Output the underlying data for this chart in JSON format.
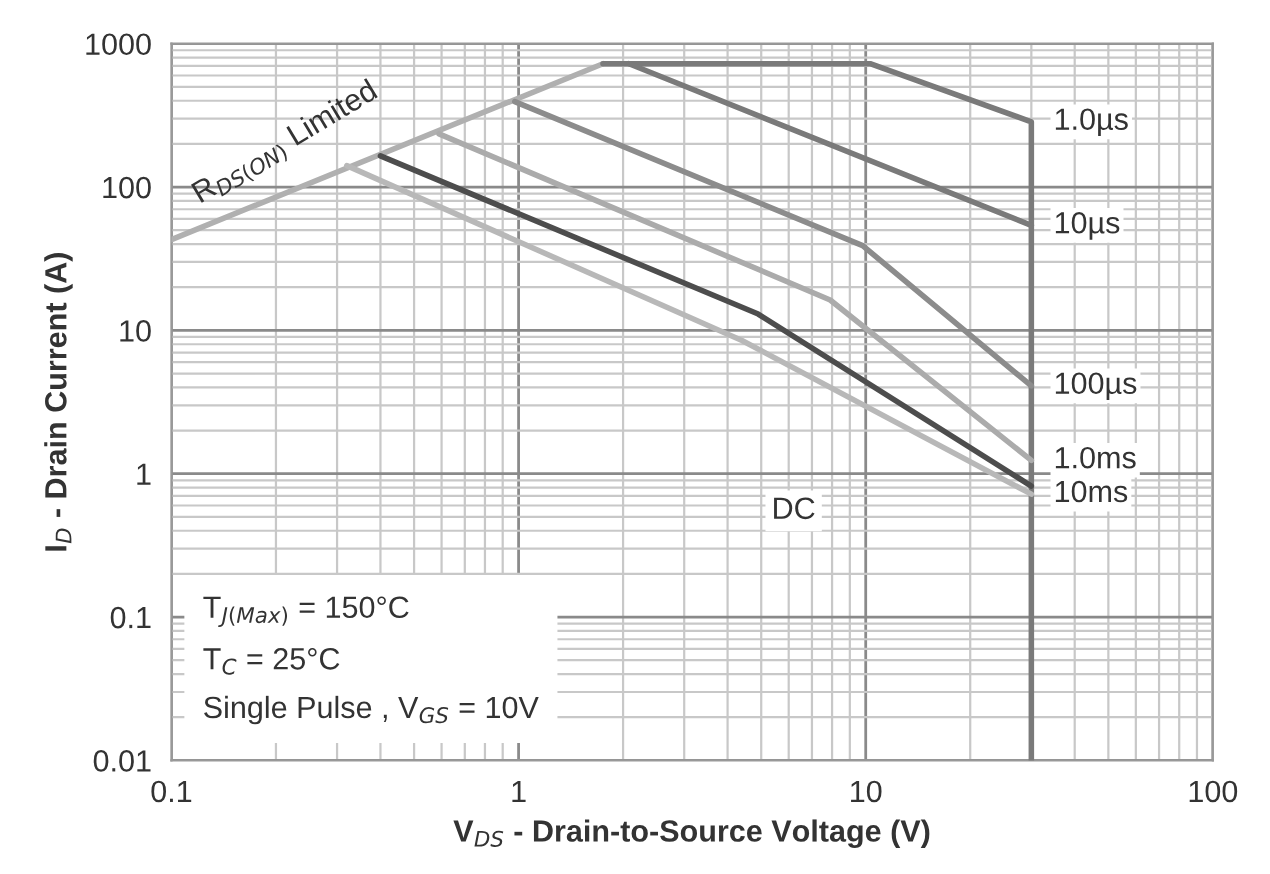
{
  "chart_data": {
    "type": "line",
    "log": "xy",
    "grid": true,
    "xlabel": "V$_{DS}$ - Drain-to-Source Voltage (V)",
    "ylabel": "I$_{D}$ - Drain Current (A)",
    "xlim": [
      0.1,
      100
    ],
    "xticks": [
      0.1,
      1,
      10,
      100
    ],
    "ylim": [
      0.01,
      1000
    ],
    "yticks": [
      0.01,
      0.1,
      1,
      10,
      100,
      1000
    ],
    "series": [
      {
        "color": "#b0b0b0",
        "x": [
          0.1,
          1.75
        ],
        "values": [
          43,
          725
        ]
      },
      {
        "name": "1.0µs",
        "color": "#7a7a7a",
        "x": [
          1.75,
          10.3,
          30,
          30
        ],
        "values": [
          725,
          725,
          285,
          0.01
        ]
      },
      {
        "name": "10µs",
        "color": "#7a7a7a",
        "x": [
          2.08,
          30
        ],
        "values": [
          725,
          54
        ]
      },
      {
        "name": "100µs",
        "color": "#8c8c8c",
        "x": [
          0.975,
          9.8,
          30
        ],
        "values": [
          394,
          39,
          4.1
        ]
      },
      {
        "name": "1.0ms",
        "color": "#ababab",
        "x": [
          0.59,
          7.9,
          30
        ],
        "values": [
          235,
          16.3,
          1.24
        ]
      },
      {
        "color": "#4d4d4d",
        "x": [
          0.4,
          4.9,
          30
        ],
        "values": [
          165,
          13,
          0.82
        ]
      },
      {
        "name": "10ms",
        "color": "#b8b8b8",
        "x": [
          0.32,
          4.4,
          30
        ],
        "values": [
          141,
          8.5,
          0.72
        ]
      }
    ],
    "annotations": [
      "R$_{DS(ON)}$ Limited",
      {
        "text": "DC",
        "x": 6.2,
        "y": 0.55
      },
      "T$_{J(Max)}$ = 150°C",
      "T$_{C}$ = 25°C",
      "Single Pulse , V$_{GS}$ = 10V"
    ]
  }
}
